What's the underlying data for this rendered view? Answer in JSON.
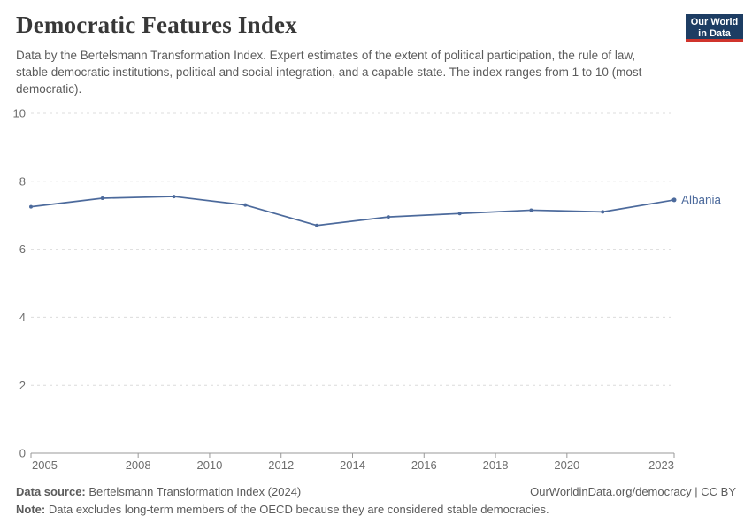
{
  "header": {
    "title": "Democratic Features Index",
    "subtitle": "Data by the Bertelsmann Transformation Index. Expert estimates of the extent of political participation, the rule of law, stable democratic institutions, political and social integration, and a capable state. The index ranges from 1 to 10 (most democratic).",
    "logo_line1": "Our World",
    "logo_line2": "in Data"
  },
  "chart_data": {
    "type": "line",
    "title": "Democratic Features Index",
    "x": [
      2005,
      2007,
      2009,
      2011,
      2013,
      2015,
      2017,
      2019,
      2021,
      2023
    ],
    "series": [
      {
        "name": "Albania",
        "values": [
          7.25,
          7.5,
          7.55,
          7.3,
          6.7,
          6.95,
          7.05,
          7.15,
          7.1,
          7.45
        ],
        "color": "#4C6A9C"
      }
    ],
    "xlim": [
      2005,
      2023
    ],
    "ylim": [
      0,
      10
    ],
    "yticks": [
      0,
      2,
      4,
      6,
      8,
      10
    ],
    "xticks": [
      2005,
      2008,
      2010,
      2012,
      2014,
      2016,
      2018,
      2020,
      2023
    ],
    "grid": "horizontal-dashed",
    "legend_position": "end-of-line-label",
    "colors": {
      "grid": "#dcdcdc",
      "axis": "#999999",
      "tick_label": "#6e6e6e"
    }
  },
  "footer": {
    "source_label": "Data source:",
    "source_text": " Bertelsmann Transformation Index (2024)",
    "attribution": "OurWorldinData.org/democracy | CC BY",
    "note_label": "Note:",
    "note_text": " Data excludes long-term members of the OECD because they are considered stable democracies."
  }
}
